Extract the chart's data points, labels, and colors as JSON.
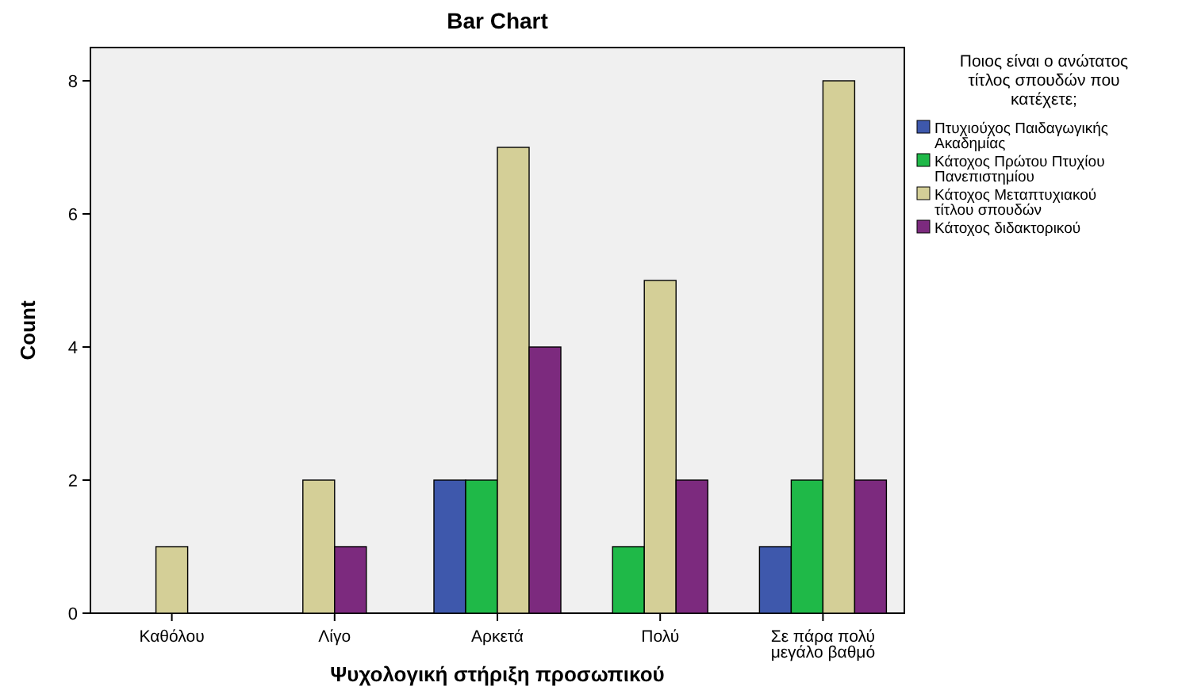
{
  "chart_data": {
    "type": "bar",
    "title": "Bar Chart",
    "xlabel": "Ψυχολογική στήριξη προσωπικού",
    "ylabel": "Count",
    "legend_title": "Ποιος είναι ο ανώτατος τίτλος σπουδών που κατέχετε;",
    "categories": [
      "Καθόλου",
      "Λίγο",
      "Αρκετά",
      "Πολύ",
      "Σε πάρα πολύ μεγάλο βαθμό"
    ],
    "series": [
      {
        "name": "Πτυχιούχος Παιδαγωγικής Ακαδημίας",
        "color": "#3e58ac",
        "values": [
          null,
          null,
          2,
          null,
          1
        ]
      },
      {
        "name": "Κάτοχος Πρώτου Πτυχίου Πανεπιστημίου",
        "color": "#1fb948",
        "values": [
          null,
          null,
          2,
          1,
          2
        ]
      },
      {
        "name": "Κάτοχος Μεταπτυχιακού τίτλου σπουδών",
        "color": "#d4cf97",
        "values": [
          1,
          2,
          7,
          5,
          8
        ]
      },
      {
        "name": "Κάτοχος διδακτορικού",
        "color": "#7c2a7e",
        "values": [
          null,
          1,
          4,
          2,
          2
        ]
      }
    ],
    "ylim": [
      0,
      8.5
    ],
    "yticks": [
      0,
      2,
      4,
      6,
      8
    ],
    "grid": false,
    "legend": "right"
  }
}
